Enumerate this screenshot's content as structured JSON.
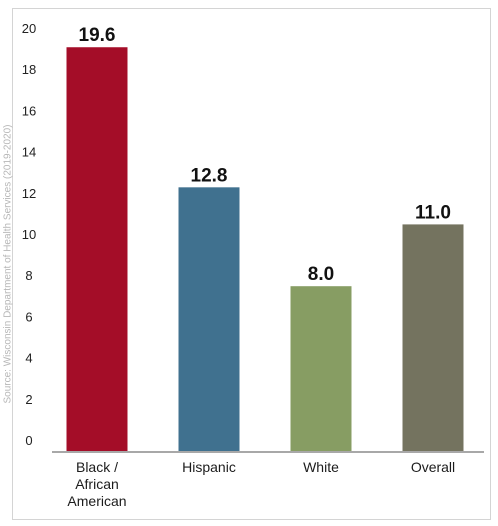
{
  "source_note": "Source: Wisconsin Department of Health Services (2019-2020)",
  "colors": {
    "axis": "#8c8c8c",
    "frame": "#d4d4d4",
    "text": "#1c1c1c"
  },
  "chart_data": {
    "type": "bar",
    "title": "",
    "xlabel": "",
    "ylabel": "",
    "categories": [
      "Black / African American",
      "Hispanic",
      "White",
      "Overall"
    ],
    "category_label_lines": [
      [
        "Black /",
        "African",
        "American"
      ],
      [
        "Hispanic"
      ],
      [
        "White"
      ],
      [
        "Overall"
      ]
    ],
    "values": [
      19.6,
      12.8,
      8.0,
      11.0
    ],
    "value_labels": [
      "19.6",
      "12.8",
      "8.0",
      "11.0"
    ],
    "bar_colors": [
      "#a40d28",
      "#40718f",
      "#879d63",
      "#74735f"
    ],
    "ylim": [
      0,
      20
    ],
    "yticks": [
      0,
      2,
      4,
      6,
      8,
      10,
      12,
      14,
      16,
      18,
      20
    ],
    "grid": false,
    "legend": "none"
  }
}
